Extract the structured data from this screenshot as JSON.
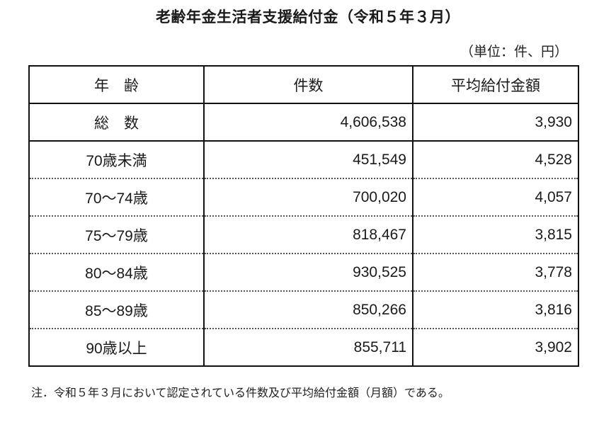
{
  "title": "老齢年金生活者支援給付金（令和５年３月）",
  "unit": "（単位：件、円）",
  "table": {
    "headers": [
      "年　齢",
      "件数",
      "平均給付金額"
    ],
    "rows": [
      {
        "age": "総　数",
        "count": "4,606,538",
        "amount": "3,930"
      },
      {
        "age": "70歳未満",
        "count": "451,549",
        "amount": "4,528"
      },
      {
        "age": "70～74歳",
        "count": "700,020",
        "amount": "4,057"
      },
      {
        "age": "75～79歳",
        "count": "818,467",
        "amount": "3,815"
      },
      {
        "age": "80～84歳",
        "count": "930,525",
        "amount": "3,778"
      },
      {
        "age": "85～89歳",
        "count": "850,266",
        "amount": "3,816"
      },
      {
        "age": "90歳以上",
        "count": "855,711",
        "amount": "3,902"
      }
    ]
  },
  "note": "注．令和５年３月において認定されている件数及び平均給付金額（月額）である。"
}
